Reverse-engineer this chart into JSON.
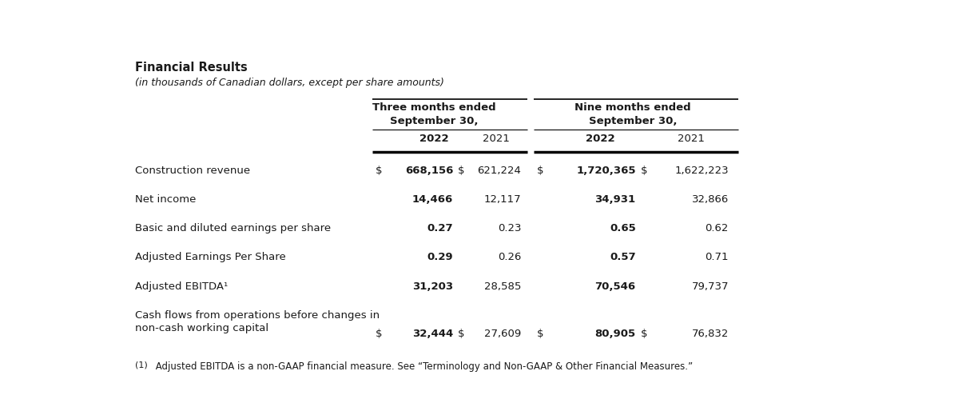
{
  "title": "Financial Results",
  "subtitle": "(in thousands of Canadian dollars, except per share amounts)",
  "grp1_header": "Three months ended\nSeptember 30,",
  "grp2_header": "Nine months ended\nSeptember 30,",
  "col_years": [
    "2022",
    "2021",
    "2022",
    "2021"
  ],
  "rows": [
    {
      "label": "Construction revenue",
      "dollar_3mo": true,
      "dollar_9mo": true,
      "val_3mo_2022": "668,156",
      "val_3mo_2021": "621,224",
      "val_9mo_2022": "1,720,365",
      "val_9mo_2021": "1,622,223",
      "two_line": false
    },
    {
      "label": "Net income",
      "dollar_3mo": false,
      "dollar_9mo": false,
      "val_3mo_2022": "14,466",
      "val_3mo_2021": "12,117",
      "val_9mo_2022": "34,931",
      "val_9mo_2021": "32,866",
      "two_line": false
    },
    {
      "label": "Basic and diluted earnings per share",
      "dollar_3mo": false,
      "dollar_9mo": false,
      "val_3mo_2022": "0.27",
      "val_3mo_2021": "0.23",
      "val_9mo_2022": "0.65",
      "val_9mo_2021": "0.62",
      "two_line": false
    },
    {
      "label": "Adjusted Earnings Per Share",
      "dollar_3mo": false,
      "dollar_9mo": false,
      "val_3mo_2022": "0.29",
      "val_3mo_2021": "0.26",
      "val_9mo_2022": "0.57",
      "val_9mo_2021": "0.71",
      "two_line": false
    },
    {
      "label": "Adjusted EBITDA¹",
      "dollar_3mo": false,
      "dollar_9mo": false,
      "val_3mo_2022": "31,203",
      "val_3mo_2021": "28,585",
      "val_9mo_2022": "70,546",
      "val_9mo_2021": "79,737",
      "two_line": false
    },
    {
      "label": "Cash flows from operations before changes in\nnon-cash working capital",
      "dollar_3mo": true,
      "dollar_9mo": true,
      "val_3mo_2022": "32,444",
      "val_3mo_2021": "27,609",
      "val_9mo_2022": "80,905",
      "val_9mo_2021": "76,832",
      "two_line": true
    }
  ],
  "footnote_marker": "(1)",
  "footnote_text": " Adjusted EBITDA is a non-GAAP financial measure. See “Terminology and Non-GAAP & Other Financial Measures.”",
  "bg_color": "#ffffff",
  "text_color": "#1a1a1a"
}
